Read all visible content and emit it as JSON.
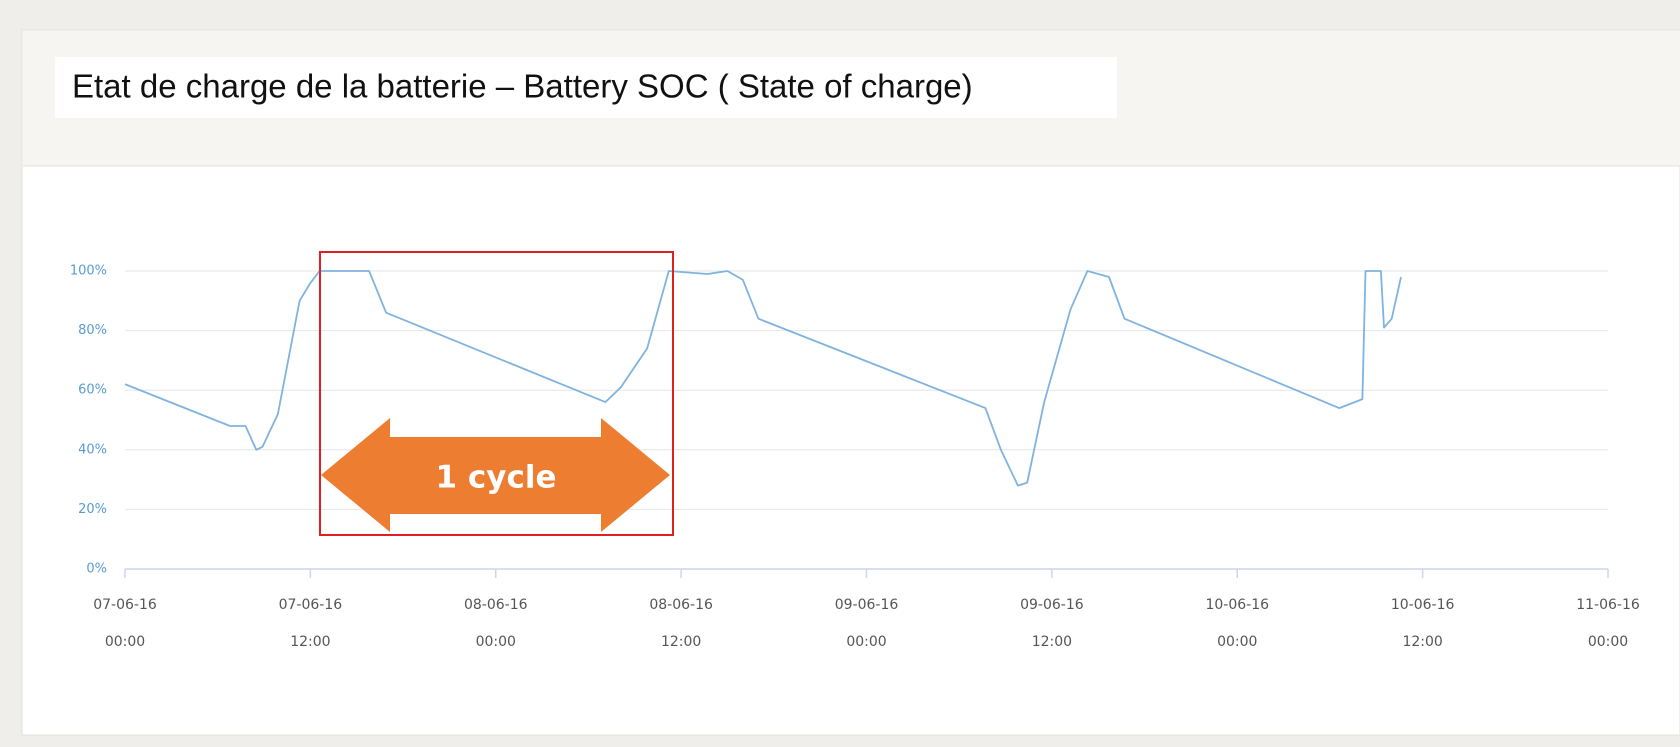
{
  "chart_data": {
    "type": "line",
    "title": "Etat de charge de la batterie – Battery SOC ( State of charge)",
    "annotation": "1 cycle",
    "x": [
      "07-06-16 00:00",
      "07-06-16 06:48",
      "07-06-16 07:48",
      "07-06-16 08:30",
      "07-06-16 08:54",
      "07-06-16 09:54",
      "07-06-16 11:18",
      "07-06-16 12:00",
      "07-06-16 12:36",
      "07-06-16 15:48",
      "07-06-16 16:54",
      "08-06-16 07:06",
      "08-06-16 08:06",
      "08-06-16 09:48",
      "08-06-16 11:12",
      "08-06-16 13:42",
      "08-06-16 15:00",
      "08-06-16 16:00",
      "08-06-16 17:00",
      "09-06-16 07:42",
      "09-06-16 08:42",
      "09-06-16 09:48",
      "09-06-16 10:24",
      "09-06-16 11:30",
      "09-06-16 13:12",
      "09-06-16 14:18",
      "09-06-16 15:42",
      "09-06-16 16:42",
      "10-06-16 06:36",
      "10-06-16 07:36",
      "10-06-16 08:06",
      "10-06-16 08:18",
      "10-06-16 09:18",
      "10-06-16 09:30",
      "10-06-16 10:00",
      "10-06-16 10:36"
    ],
    "series": [
      {
        "color": "#7fb3e0",
        "values": [
          62,
          48,
          48,
          40,
          41,
          52,
          90,
          96,
          100,
          100,
          86,
          56,
          61,
          74,
          100,
          99,
          100,
          97,
          84,
          54,
          40,
          28,
          29,
          56,
          87,
          100,
          98,
          84,
          54,
          56,
          57,
          100,
          100,
          81,
          84,
          98
        ]
      }
    ],
    "xlim": [
      "07-06-16 00:00",
      "11-06-16 00:00"
    ],
    "xticks": [
      {
        "value": "07-06-16 00:00",
        "label": [
          "07-06-16",
          "00:00"
        ]
      },
      {
        "value": "07-06-16 12:00",
        "label": [
          "07-06-16",
          "12:00"
        ]
      },
      {
        "value": "08-06-16 00:00",
        "label": [
          "08-06-16",
          "00:00"
        ]
      },
      {
        "value": "08-06-16 12:00",
        "label": [
          "08-06-16",
          "12:00"
        ]
      },
      {
        "value": "09-06-16 00:00",
        "label": [
          "09-06-16",
          "00:00"
        ]
      },
      {
        "value": "09-06-16 12:00",
        "label": [
          "09-06-16",
          "12:00"
        ]
      },
      {
        "value": "10-06-16 00:00",
        "label": [
          "10-06-16",
          "00:00"
        ]
      },
      {
        "value": "10-06-16 12:00",
        "label": [
          "10-06-16",
          "12:00"
        ]
      },
      {
        "value": "11-06-16 00:00",
        "label": [
          "11-06-16",
          "00:00"
        ]
      }
    ],
    "ylim": [
      0,
      100
    ],
    "yticks": [
      {
        "value": 0,
        "label": "0%"
      },
      {
        "value": 20,
        "label": "20%"
      },
      {
        "value": 40,
        "label": "40%"
      },
      {
        "value": 60,
        "label": "60%"
      },
      {
        "value": 80,
        "label": "80%"
      },
      {
        "value": 100,
        "label": "100%"
      }
    ],
    "grid": true
  }
}
